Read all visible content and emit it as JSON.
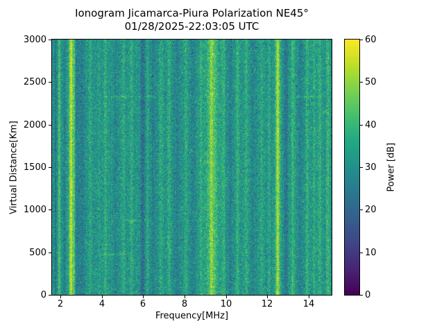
{
  "figure": {
    "title": "Ionogram Jicamarca-Piura Polarization NE45°",
    "subtitle": "01/28/2025-22:03:05 UTC"
  },
  "chart_data": {
    "type": "heatmap",
    "title": "Ionogram Jicamarca-Piura Polarization NE45°",
    "subtitle": "01/28/2025-22:03:05 UTC",
    "xlabel": "Frequency[MHz]",
    "ylabel": "Virtual Distance[Km]",
    "xlim": [
      1.6,
      15.1
    ],
    "ylim": [
      0,
      3000
    ],
    "xticks": [
      2,
      4,
      6,
      8,
      10,
      12,
      14
    ],
    "yticks": [
      0,
      500,
      1000,
      1500,
      2000,
      2500,
      3000
    ],
    "grid": false,
    "legend": false,
    "colorbar": {
      "label": "Power [dB]",
      "min": 0,
      "max": 60,
      "ticks": [
        0,
        10,
        20,
        30,
        40,
        50,
        60
      ],
      "colormap": "viridis"
    },
    "colormap_stops": [
      {
        "t": 0.0,
        "color": "#440154"
      },
      {
        "t": 0.1,
        "color": "#482475"
      },
      {
        "t": 0.2,
        "color": "#414487"
      },
      {
        "t": 0.3,
        "color": "#355f8d"
      },
      {
        "t": 0.4,
        "color": "#2a788e"
      },
      {
        "t": 0.5,
        "color": "#21918c"
      },
      {
        "t": 0.6,
        "color": "#22a884"
      },
      {
        "t": 0.7,
        "color": "#44bf70"
      },
      {
        "t": 0.8,
        "color": "#7ad151"
      },
      {
        "t": 0.9,
        "color": "#bddf26"
      },
      {
        "t": 1.0,
        "color": "#fde725"
      }
    ],
    "noise": {
      "mean": 31,
      "std": 5.5,
      "seed": 42,
      "column_jitter": 1.2,
      "speckle_prob": 0.004,
      "speckle_amp": -22
    },
    "vertical_bands": [
      {
        "freq": 1.78,
        "width": 0.05,
        "amp": -8
      },
      {
        "freq": 1.95,
        "width": 0.04,
        "amp": 12
      },
      {
        "freq": 2.2,
        "width": 0.05,
        "amp": -5
      },
      {
        "freq": 2.52,
        "width": 0.07,
        "amp": 24
      },
      {
        "freq": 2.66,
        "width": 0.04,
        "amp": 10
      },
      {
        "freq": 2.95,
        "width": 0.15,
        "amp": -6
      },
      {
        "freq": 3.45,
        "width": 0.05,
        "amp": 5
      },
      {
        "freq": 3.85,
        "width": 0.05,
        "amp": 4
      },
      {
        "freq": 4.18,
        "width": 0.06,
        "amp": 7
      },
      {
        "freq": 4.7,
        "width": 0.08,
        "amp": -4
      },
      {
        "freq": 5.05,
        "width": 0.06,
        "amp": 5
      },
      {
        "freq": 5.45,
        "width": 0.06,
        "amp": 6
      },
      {
        "freq": 5.97,
        "width": 0.08,
        "amp": -9
      },
      {
        "freq": 6.2,
        "width": 0.05,
        "amp": 4
      },
      {
        "freq": 6.47,
        "width": 0.07,
        "amp": -5
      },
      {
        "freq": 6.87,
        "width": 0.06,
        "amp": 5
      },
      {
        "freq": 7.24,
        "width": 0.06,
        "amp": 6
      },
      {
        "freq": 7.66,
        "width": 0.1,
        "amp": -3
      },
      {
        "freq": 8.07,
        "width": 0.06,
        "amp": 5
      },
      {
        "freq": 8.42,
        "width": 0.08,
        "amp": -4
      },
      {
        "freq": 8.8,
        "width": 0.06,
        "amp": 6
      },
      {
        "freq": 9.35,
        "width": 0.22,
        "amp": 12
      },
      {
        "freq": 9.3,
        "width": 0.06,
        "amp": 7
      },
      {
        "freq": 9.88,
        "width": 0.06,
        "amp": 6
      },
      {
        "freq": 10.2,
        "width": 0.08,
        "amp": -5
      },
      {
        "freq": 10.55,
        "width": 0.06,
        "amp": 8
      },
      {
        "freq": 10.98,
        "width": 0.06,
        "amp": 7
      },
      {
        "freq": 11.32,
        "width": 0.08,
        "amp": -4
      },
      {
        "freq": 11.72,
        "width": 0.06,
        "amp": 5
      },
      {
        "freq": 12.1,
        "width": 0.06,
        "amp": 4
      },
      {
        "freq": 12.5,
        "width": 0.08,
        "amp": 22
      },
      {
        "freq": 12.89,
        "width": 0.08,
        "amp": -6
      },
      {
        "freq": 13.23,
        "width": 0.06,
        "amp": 8
      },
      {
        "freq": 13.6,
        "width": 0.07,
        "amp": -4
      },
      {
        "freq": 13.92,
        "width": 0.06,
        "amp": 7
      },
      {
        "freq": 14.25,
        "width": 0.06,
        "amp": 5
      },
      {
        "freq": 14.52,
        "width": 0.06,
        "amp": 8
      },
      {
        "freq": 14.92,
        "width": 0.06,
        "amp": 9
      }
    ],
    "horizontal_streaks": [
      {
        "km": 2330,
        "f_start": 3.9,
        "f_end": 6.6,
        "amp": 6,
        "halfwidth_km": 12
      },
      {
        "km": 2330,
        "f_start": 13.4,
        "f_end": 14.6,
        "amp": 5,
        "halfwidth_km": 12
      },
      {
        "km": 480,
        "f_start": 3.8,
        "f_end": 5.3,
        "amp": 5,
        "halfwidth_km": 12
      },
      {
        "km": 880,
        "f_start": 5.2,
        "f_end": 6.4,
        "amp": 5,
        "halfwidth_km": 12
      }
    ]
  }
}
